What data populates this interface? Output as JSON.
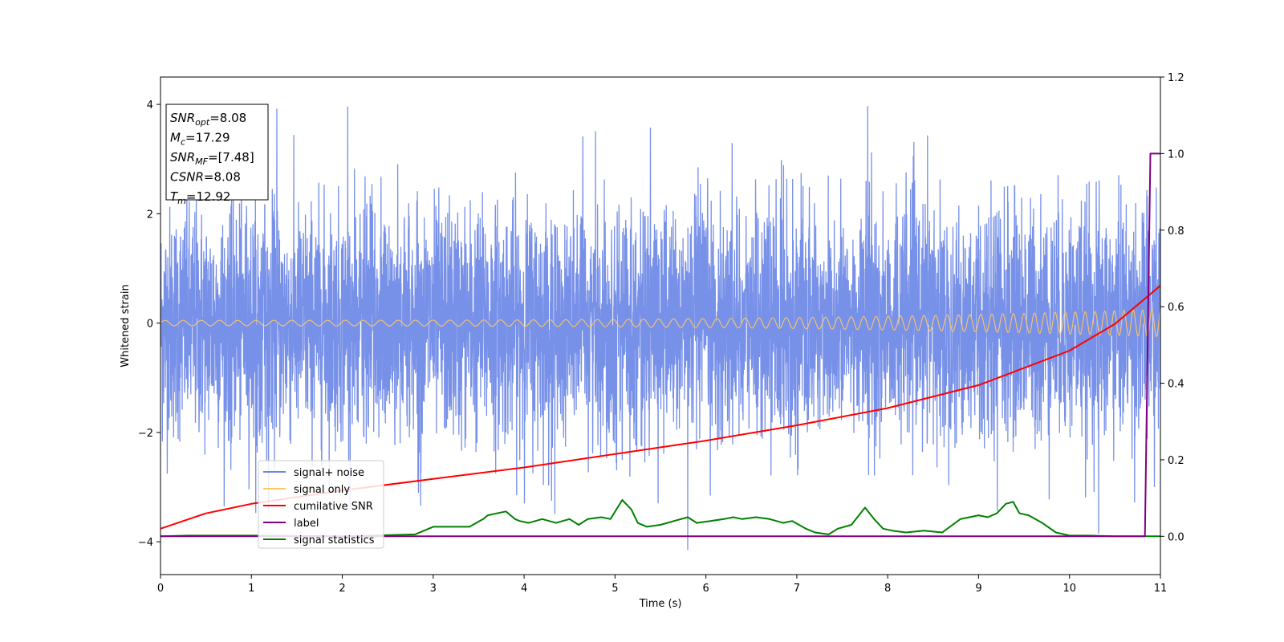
{
  "chart_data": {
    "type": "line",
    "xlabel": "Time (s)",
    "ylabel_left": "Whitened strain",
    "ylabel_right": "",
    "xlim": [
      0,
      11
    ],
    "ylim_left": [
      -4.6,
      4.5
    ],
    "ylim_right": [
      -0.1,
      1.2
    ],
    "x_ticks": [
      0,
      1,
      2,
      3,
      4,
      5,
      6,
      7,
      8,
      9,
      10,
      11
    ],
    "y_ticks_left": [
      -4,
      -2,
      0,
      2,
      4
    ],
    "y_ticks_right": [
      0.0,
      0.2,
      0.4,
      0.6,
      0.8,
      1.0,
      1.2
    ],
    "x_tick_labels": [
      "0",
      "1",
      "2",
      "3",
      "4",
      "5",
      "6",
      "7",
      "8",
      "9",
      "10",
      "11"
    ],
    "y_tick_labels_left": [
      "−4",
      "−2",
      "0",
      "2",
      "4"
    ],
    "y_tick_labels_right": [
      "0.0",
      "0.2",
      "0.4",
      "0.6",
      "0.8",
      "1.0",
      "1.2"
    ],
    "grid": false,
    "legend_position": "lower-left",
    "legend": [
      {
        "label": "signal+ noise",
        "color": "#6b87e6"
      },
      {
        "label": "signal only",
        "color": "#ffc766"
      },
      {
        "label": "cumilative SNR",
        "color": "#ff0000"
      },
      {
        "label": "label",
        "color": "#800080"
      },
      {
        "label": "signal statistics",
        "color": "#008000"
      }
    ],
    "series": [
      {
        "name": "signal+ noise",
        "axis": "left",
        "color": "#6b87e6",
        "description": "white Gaussian noise, std ~1.05, range -4.15 to 3.97",
        "notable_extremes": [
          {
            "x": 1.28,
            "y": 3.92
          },
          {
            "x": 2.06,
            "y": 3.96
          },
          {
            "x": 7.78,
            "y": 3.97
          },
          {
            "x": 5.8,
            "y": -4.15
          },
          {
            "x": 10.32,
            "y": -3.85
          }
        ]
      },
      {
        "name": "signal only",
        "axis": "left",
        "color": "#ffc766",
        "description": "chirp, amplitude grows from 0.05 to 0.25, frequency grows toward 11 s"
      },
      {
        "name": "cumilative SNR",
        "axis": "right",
        "color": "#ff0000",
        "x": [
          0,
          0.5,
          1,
          2,
          3,
          4,
          5,
          6,
          7,
          8,
          9,
          10,
          10.5,
          11
        ],
        "y": [
          0.02,
          0.06,
          0.085,
          0.12,
          0.15,
          0.18,
          0.215,
          0.25,
          0.29,
          0.335,
          0.395,
          0.485,
          0.555,
          0.655
        ]
      },
      {
        "name": "label",
        "axis": "right",
        "color": "#800080",
        "x": [
          0,
          10.83,
          10.89,
          11
        ],
        "y": [
          0,
          0,
          1.0,
          1.0
        ]
      },
      {
        "name": "signal statistics",
        "axis": "right",
        "color": "#008000",
        "x": [
          0,
          0.3,
          1,
          2,
          2.8,
          3.0,
          3.2,
          3.4,
          3.55,
          3.6,
          3.7,
          3.8,
          3.9,
          3.95,
          4.05,
          4.2,
          4.35,
          4.5,
          4.6,
          4.7,
          4.85,
          4.95,
          5.08,
          5.18,
          5.25,
          5.35,
          5.5,
          5.65,
          5.8,
          5.9,
          6.05,
          6.2,
          6.3,
          6.4,
          6.55,
          6.7,
          6.85,
          6.95,
          7.1,
          7.2,
          7.35,
          7.45,
          7.6,
          7.75,
          7.85,
          7.95,
          8.05,
          8.2,
          8.4,
          8.6,
          8.8,
          8.9,
          9.0,
          9.1,
          9.2,
          9.3,
          9.38,
          9.45,
          9.55,
          9.7,
          9.85,
          10.0,
          10.2,
          10.5,
          10.83,
          11
        ],
        "y": [
          0,
          0.002,
          0.002,
          0.0,
          0.005,
          0.025,
          0.025,
          0.025,
          0.045,
          0.055,
          0.06,
          0.065,
          0.045,
          0.04,
          0.035,
          0.045,
          0.035,
          0.045,
          0.03,
          0.045,
          0.05,
          0.045,
          0.095,
          0.07,
          0.035,
          0.025,
          0.03,
          0.04,
          0.05,
          0.035,
          0.04,
          0.045,
          0.05,
          0.045,
          0.05,
          0.045,
          0.035,
          0.04,
          0.02,
          0.01,
          0.005,
          0.02,
          0.03,
          0.075,
          0.045,
          0.02,
          0.015,
          0.01,
          0.015,
          0.01,
          0.045,
          0.05,
          0.055,
          0.05,
          0.06,
          0.085,
          0.09,
          0.06,
          0.055,
          0.035,
          0.01,
          0.002,
          0.002,
          0.0,
          0.0,
          0.0
        ]
      }
    ],
    "annotation_box": {
      "lines": [
        {
          "base": "SNR",
          "sub": "opt",
          "rest": "=8.08"
        },
        {
          "base": "M",
          "sub": "c",
          "rest": "=17.29"
        },
        {
          "base": "SNR",
          "sub": "MF",
          "rest": "=[7.48]"
        },
        {
          "base": "CSNR",
          "sub": "",
          "rest": "=8.08"
        },
        {
          "base": "T",
          "sub": "m",
          "rest": "=12.92"
        }
      ]
    }
  }
}
